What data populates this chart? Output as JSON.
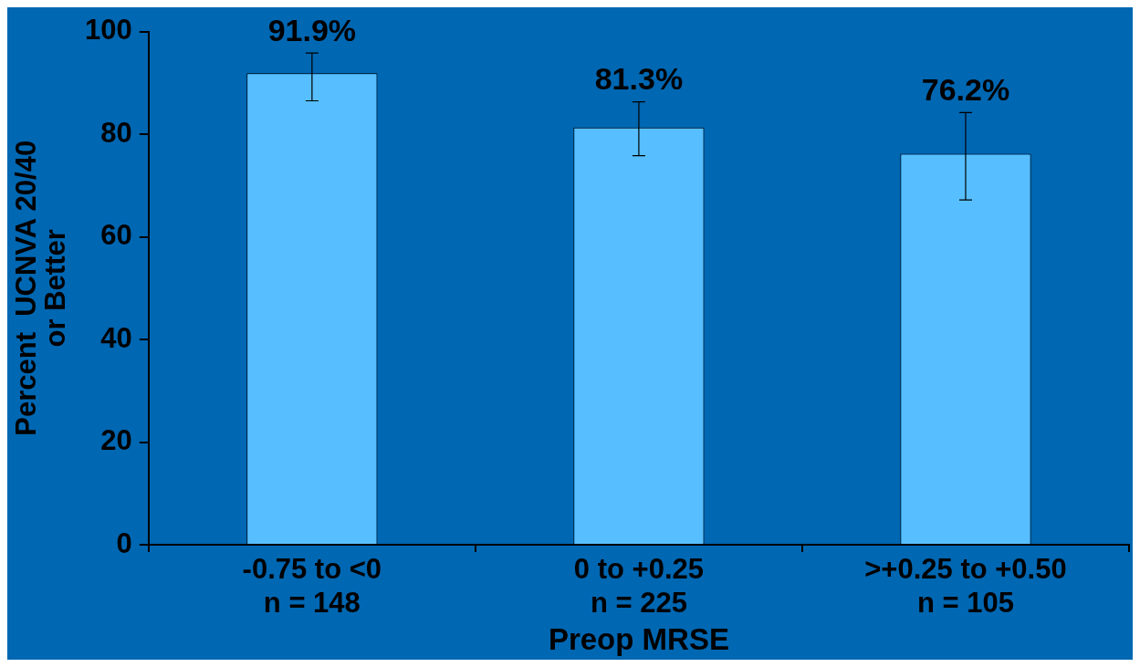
{
  "chart_data": {
    "type": "bar",
    "xlabel": "Preop MRSE",
    "ylabel": "Percent  UCNVA 20/40\nor Better",
    "categories": [
      "-0.75 to <0\nn = 148",
      "0 to +0.25\nn = 225",
      ">+0.25 to +0.50\nn = 105"
    ],
    "values": [
      91.9,
      81.3,
      76.2
    ],
    "value_labels": [
      "91.9%",
      "81.3%",
      "76.2%"
    ],
    "errors": [
      [
        86.5,
        95.8
      ],
      [
        75.8,
        86.3
      ],
      [
        67.2,
        84.2
      ]
    ],
    "color": "#57bfff",
    "ylim": [
      0,
      100
    ],
    "yticks": [
      0,
      20,
      40,
      60,
      80,
      100
    ],
    "grid": false,
    "legend": false
  }
}
